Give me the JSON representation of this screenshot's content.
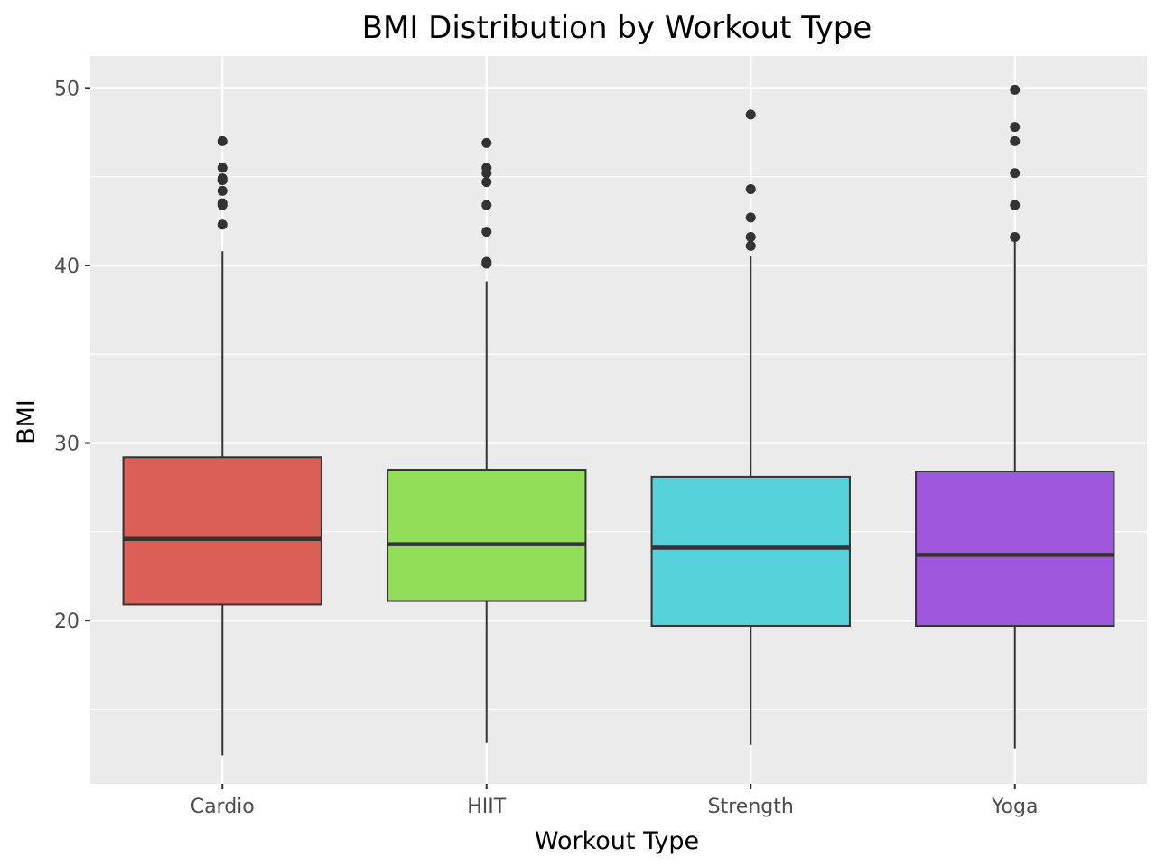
{
  "chart_data": {
    "type": "boxplot",
    "title": "BMI Distribution by Workout Type",
    "xlabel": "Workout Type",
    "ylabel": "BMI",
    "ylim": [
      10.8,
      51.8
    ],
    "yticks": [
      20,
      30,
      40,
      50
    ],
    "grid": true,
    "legend": "none",
    "categories": [
      "Cardio",
      "HIIT",
      "Strength",
      "Yoga"
    ],
    "series": [
      {
        "category": "Cardio",
        "color": "#dc5f57",
        "whisker_low": 12.4,
        "q1": 20.9,
        "median": 24.6,
        "q3": 29.2,
        "whisker_high": 40.8,
        "outliers": [
          42.3,
          43.4,
          43.5,
          44.2,
          44.8,
          44.9,
          45.5,
          47.0
        ]
      },
      {
        "category": "HIIT",
        "color": "#92dd5a",
        "whisker_low": 13.1,
        "q1": 21.1,
        "median": 24.3,
        "q3": 28.5,
        "whisker_high": 39.1,
        "outliers": [
          40.1,
          40.2,
          41.9,
          43.4,
          44.7,
          45.2,
          45.5,
          46.9
        ]
      },
      {
        "category": "Strength",
        "color": "#56d3da",
        "whisker_low": 13.0,
        "q1": 19.7,
        "median": 24.1,
        "q3": 28.1,
        "whisker_high": 40.5,
        "outliers": [
          41.1,
          41.6,
          42.7,
          44.3,
          48.5
        ]
      },
      {
        "category": "Yoga",
        "color": "#9f58dd",
        "whisker_low": 12.8,
        "q1": 19.7,
        "median": 23.7,
        "q3": 28.4,
        "whisker_high": 41.5,
        "outliers": [
          41.6,
          43.4,
          45.2,
          47.0,
          47.8,
          49.9
        ]
      }
    ]
  }
}
